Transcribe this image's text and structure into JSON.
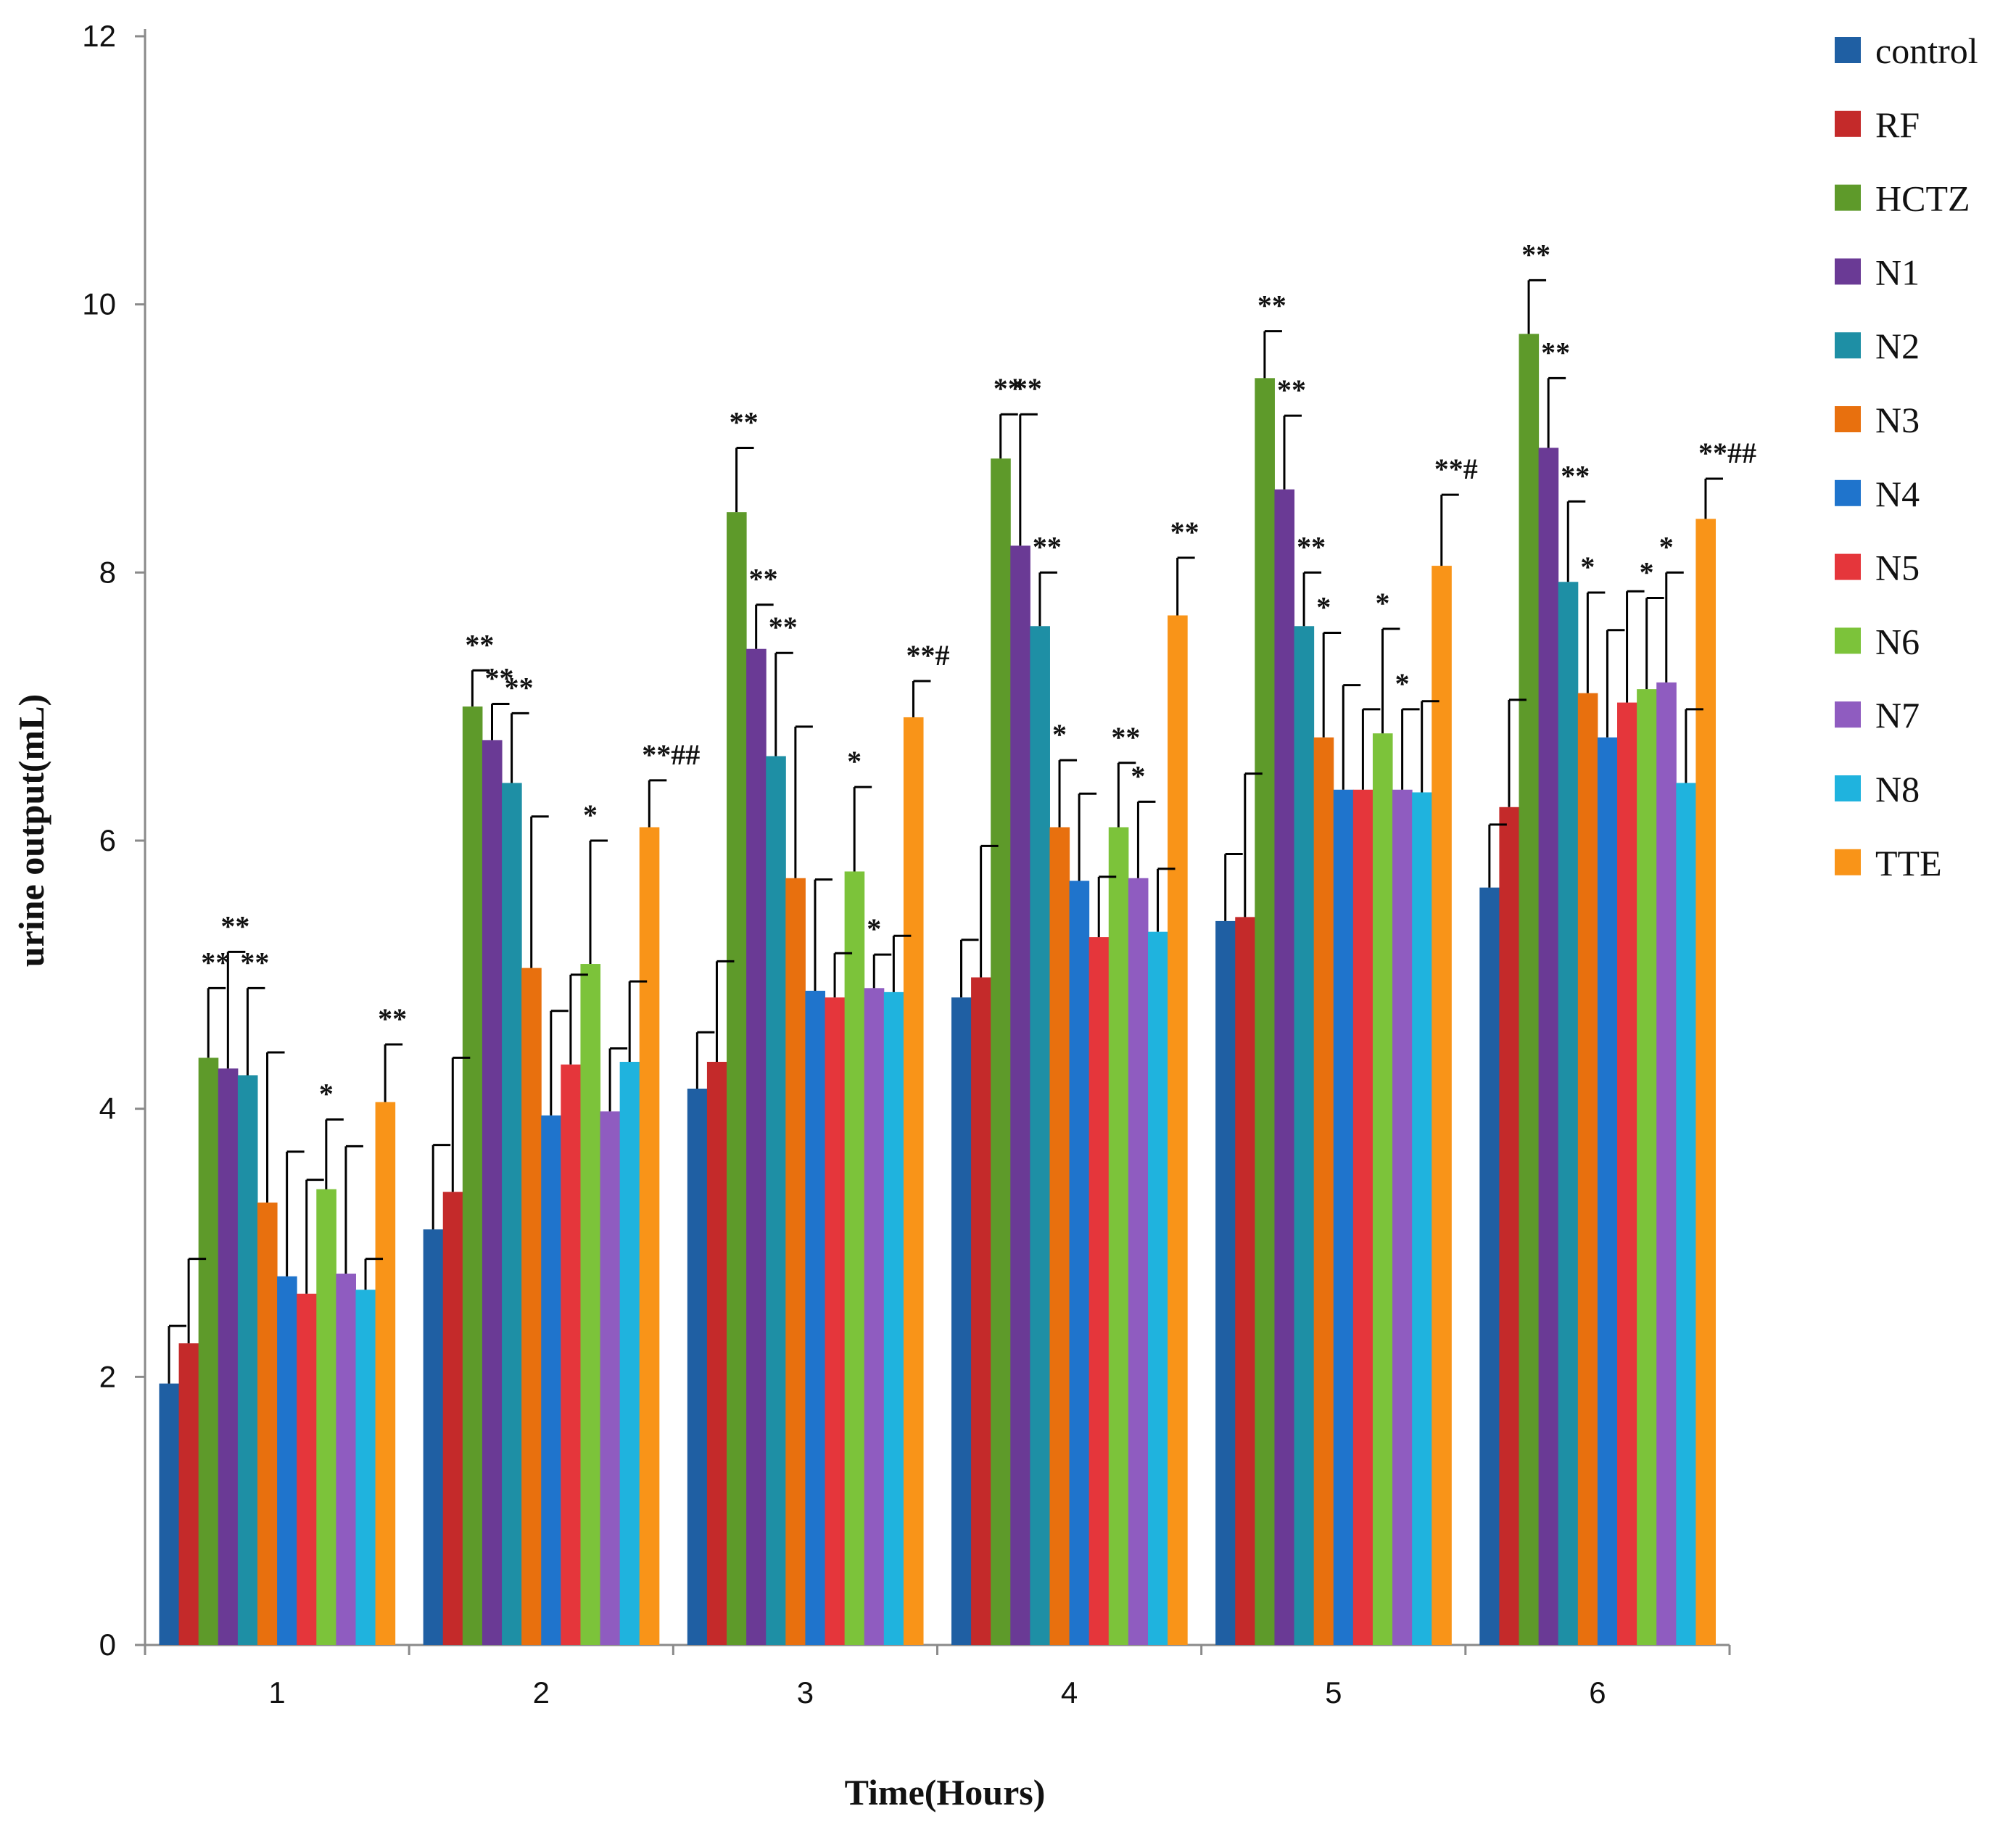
{
  "chart_data": {
    "type": "bar",
    "title": "",
    "xlabel": "Time(Hours)",
    "ylabel": "urine output(mL)",
    "ylim": [
      0,
      12
    ],
    "yticks": [
      0,
      2,
      4,
      6,
      8,
      10,
      12
    ],
    "grid": false,
    "legend_position": "right",
    "categories": [
      "1",
      "2",
      "3",
      "4",
      "5",
      "6"
    ],
    "series": [
      {
        "name": "control",
        "color": "#1f5fa3",
        "values": [
          1.95,
          3.1,
          4.15,
          4.83,
          5.4,
          5.65
        ],
        "errors": [
          0.43,
          0.63,
          0.42,
          0.43,
          0.5,
          0.47
        ],
        "annotations": [
          "",
          "",
          "",
          "",
          "",
          ""
        ]
      },
      {
        "name": "RF",
        "color": "#c42a2a",
        "values": [
          2.25,
          3.38,
          4.35,
          4.98,
          5.43,
          6.25
        ],
        "errors": [
          0.63,
          1.0,
          0.75,
          0.98,
          1.07,
          0.8
        ],
        "annotations": [
          "",
          "",
          "",
          "",
          "",
          ""
        ]
      },
      {
        "name": "HCTZ",
        "color": "#5e9a2a",
        "values": [
          4.38,
          7.0,
          8.45,
          8.85,
          9.45,
          9.78
        ],
        "errors": [
          0.52,
          0.27,
          0.48,
          0.33,
          0.35,
          0.4
        ],
        "annotations": [
          "**",
          "**",
          "**",
          "**",
          "**",
          "**"
        ]
      },
      {
        "name": "N1",
        "color": "#6a3a95",
        "values": [
          4.3,
          6.75,
          7.43,
          8.2,
          8.62,
          8.93
        ],
        "errors": [
          0.87,
          0.27,
          0.33,
          0.98,
          0.55,
          0.52
        ],
        "annotations": [
          "**",
          "**",
          "**",
          "**",
          "**",
          "**"
        ]
      },
      {
        "name": "N2",
        "color": "#1e8fa5",
        "values": [
          4.25,
          6.43,
          6.63,
          7.6,
          7.6,
          7.93
        ],
        "errors": [
          0.65,
          0.52,
          0.77,
          0.4,
          0.4,
          0.6
        ],
        "annotations": [
          "**",
          "**",
          "**",
          "**",
          "**",
          "**"
        ]
      },
      {
        "name": "N3",
        "color": "#e8700e",
        "values": [
          3.3,
          5.05,
          5.72,
          6.1,
          6.77,
          7.1
        ],
        "errors": [
          1.12,
          1.13,
          1.13,
          0.5,
          0.78,
          0.75
        ],
        "annotations": [
          "",
          "",
          "",
          "*",
          "*",
          "*"
        ]
      },
      {
        "name": "N4",
        "color": "#1f74cc",
        "values": [
          2.75,
          3.95,
          4.88,
          5.7,
          6.38,
          6.77
        ],
        "errors": [
          0.93,
          0.78,
          0.83,
          0.65,
          0.78,
          0.8
        ],
        "annotations": [
          "",
          "",
          "",
          "",
          "",
          ""
        ]
      },
      {
        "name": "N5",
        "color": "#e5363b",
        "values": [
          2.62,
          4.33,
          4.83,
          5.28,
          6.38,
          7.03
        ],
        "errors": [
          0.85,
          0.67,
          0.33,
          0.45,
          0.6,
          0.83
        ],
        "annotations": [
          "",
          "",
          "",
          "",
          "",
          ""
        ]
      },
      {
        "name": "N6",
        "color": "#7cc33a",
        "values": [
          3.4,
          5.08,
          5.77,
          6.1,
          6.8,
          7.13
        ],
        "errors": [
          0.52,
          0.92,
          0.63,
          0.48,
          0.78,
          0.68
        ],
        "annotations": [
          "*",
          "*",
          "*",
          "**",
          "*",
          "*"
        ]
      },
      {
        "name": "N7",
        "color": "#8f5cc0",
        "values": [
          2.77,
          3.98,
          4.9,
          5.72,
          6.38,
          7.18
        ],
        "errors": [
          0.95,
          0.47,
          0.25,
          0.57,
          0.6,
          0.82
        ],
        "annotations": [
          "",
          "",
          "*",
          "*",
          "*",
          "*"
        ]
      },
      {
        "name": "N8",
        "color": "#1fb3de",
        "values": [
          2.65,
          4.35,
          4.87,
          5.32,
          6.36,
          6.43
        ],
        "errors": [
          0.23,
          0.6,
          0.42,
          0.47,
          0.68,
          0.55
        ],
        "annotations": [
          "",
          "",
          "",
          "",
          "",
          ""
        ]
      },
      {
        "name": "TTE",
        "color": "#f99418",
        "values": [
          4.05,
          6.1,
          6.92,
          7.68,
          8.05,
          8.4
        ],
        "errors": [
          0.43,
          0.35,
          0.27,
          0.43,
          0.53,
          0.3
        ],
        "annotations": [
          "**",
          "**##",
          "**#",
          "**",
          "**#",
          "**##"
        ]
      }
    ]
  }
}
